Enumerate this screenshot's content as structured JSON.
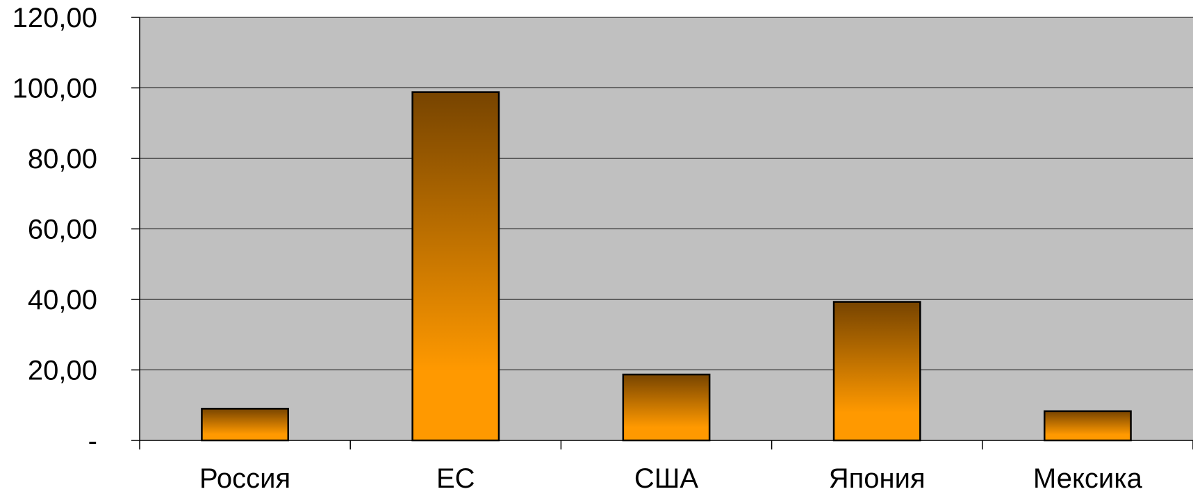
{
  "chart_data": {
    "type": "bar",
    "categories": [
      "Россия",
      "ЕС",
      "США",
      "Япония",
      "Мексика"
    ],
    "values": [
      9,
      98.8,
      18.7,
      39.3,
      8.3
    ],
    "ylim": [
      0,
      120
    ],
    "yticks": [
      0,
      20,
      40,
      60,
      80,
      100,
      120
    ],
    "ytick_labels": [
      "-",
      "20,00",
      "40,00",
      "60,00",
      "80,00",
      "100,00",
      "120,00"
    ],
    "grid": true,
    "legend": "none",
    "colors": {
      "plot_background": "#c0c0c0",
      "bar_top": "#774400",
      "bar_bottom": "#ff9900",
      "bar_edge": "#000000",
      "grid": "#000000"
    }
  }
}
